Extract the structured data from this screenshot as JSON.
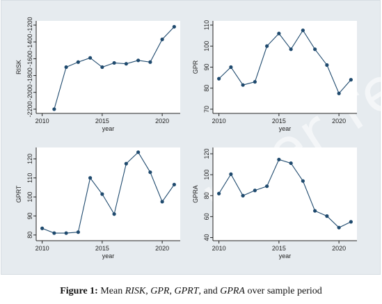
{
  "watermark": "peer review",
  "caption": {
    "label": "Figure 1:",
    "prefix": " Mean ",
    "v1": "RISK",
    "sep1": ", ",
    "v2": "GPR",
    "sep2": ", ",
    "v3": "GPRT",
    "sep3": ", and ",
    "v4": "GPRA",
    "suffix": " over sample period"
  },
  "colors": {
    "line": "#1f4a6e",
    "marker": "#1f4a6e",
    "plot_bg": "#ffffff",
    "axis": "#222222"
  },
  "chart_data": [
    {
      "type": "line",
      "xlabel": "year",
      "ylabel": "RISK",
      "xlim": [
        2009.5,
        2021.5
      ],
      "ylim": [
        -2250,
        -1150
      ],
      "xticks": [
        2010,
        2015,
        2020
      ],
      "yticks": [
        -2200,
        -2000,
        -1800,
        -1600,
        -1400,
        -1200
      ],
      "ytick_labels": [
        "-2200",
        "-2000",
        "-1800",
        "-1600",
        "-1400",
        "-1200"
      ],
      "x": [
        2011,
        2012,
        2013,
        2014,
        2015,
        2016,
        2017,
        2018,
        2019,
        2020,
        2021
      ],
      "y": [
        -2200,
        -1700,
        -1640,
        -1590,
        -1700,
        -1650,
        -1660,
        -1620,
        -1640,
        -1370,
        -1220
      ],
      "grid": false
    },
    {
      "type": "line",
      "xlabel": "year",
      "ylabel": "GPR",
      "xlim": [
        2009.5,
        2021.5
      ],
      "ylim": [
        68,
        112
      ],
      "xticks": [
        2010,
        2015,
        2020
      ],
      "yticks": [
        70,
        80,
        90,
        100,
        110
      ],
      "ytick_labels": [
        "70",
        "80",
        "90",
        "100",
        "110"
      ],
      "x": [
        2010,
        2011,
        2012,
        2013,
        2014,
        2015,
        2016,
        2017,
        2018,
        2019,
        2020,
        2021
      ],
      "y": [
        84.5,
        90,
        81.5,
        83,
        100,
        106,
        98.5,
        107.5,
        98.5,
        91,
        77.5,
        84
      ],
      "grid": false
    },
    {
      "type": "line",
      "xlabel": "year",
      "ylabel": "GPRT",
      "xlim": [
        2009.5,
        2021.5
      ],
      "ylim": [
        77,
        126
      ],
      "xticks": [
        2010,
        2015,
        2020
      ],
      "yticks": [
        80,
        90,
        100,
        110,
        120
      ],
      "ytick_labels": [
        "80",
        "90",
        "100",
        "110",
        "120"
      ],
      "x": [
        2010,
        2011,
        2012,
        2013,
        2014,
        2015,
        2016,
        2017,
        2018,
        2019,
        2020,
        2021
      ],
      "y": [
        83.5,
        81,
        81,
        81.5,
        110,
        101.5,
        91,
        117.5,
        123.5,
        113,
        97.5,
        106.5
      ],
      "grid": false
    },
    {
      "type": "line",
      "xlabel": "year",
      "ylabel": "GPRA",
      "xlim": [
        2009.5,
        2021.5
      ],
      "ylim": [
        37,
        126
      ],
      "xticks": [
        2010,
        2015,
        2020
      ],
      "yticks": [
        40,
        60,
        80,
        100,
        120
      ],
      "ytick_labels": [
        "40",
        "60",
        "80",
        "100",
        "120"
      ],
      "x": [
        2010,
        2011,
        2012,
        2013,
        2014,
        2015,
        2016,
        2017,
        2018,
        2019,
        2020,
        2021
      ],
      "y": [
        82,
        100.5,
        80,
        85,
        89,
        114.5,
        111,
        94,
        65.5,
        60.5,
        49.5,
        55
      ],
      "grid": false
    }
  ]
}
